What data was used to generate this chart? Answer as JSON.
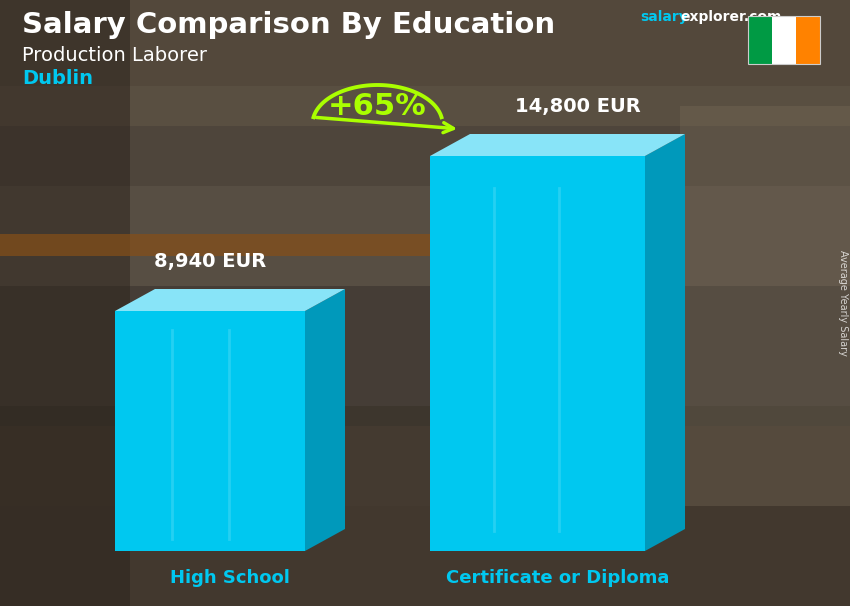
{
  "title_main": "Salary Comparison By Education",
  "title_sub": "Production Laborer",
  "city": "Dublin",
  "watermark_salary": "salary",
  "watermark_rest": "explorer.com",
  "ylabel": "Average Yearly Salary",
  "categories": [
    "High School",
    "Certificate or Diploma"
  ],
  "values": [
    8940,
    14800
  ],
  "value_labels": [
    "8,940 EUR",
    "14,800 EUR"
  ],
  "pct_change": "+65%",
  "bar_front": "#00C8F0",
  "bar_side": "#0099BB",
  "bar_top": "#88E4F8",
  "city_color": "#00C8F0",
  "title_color": "#FFFFFF",
  "sub_color": "#FFFFFF",
  "label_color": "#FFFFFF",
  "pct_color": "#AAFF00",
  "arc_color": "#AAFF00",
  "watermark_salary_color": "#00C8F0",
  "watermark_rest_color": "#FFFFFF",
  "flag_green": "#009A44",
  "flag_white": "#FFFFFF",
  "flag_orange": "#FF8200",
  "bg_top": "#5a5040",
  "bg_bottom": "#7a6a50",
  "bg_mid": "#8a7a60"
}
